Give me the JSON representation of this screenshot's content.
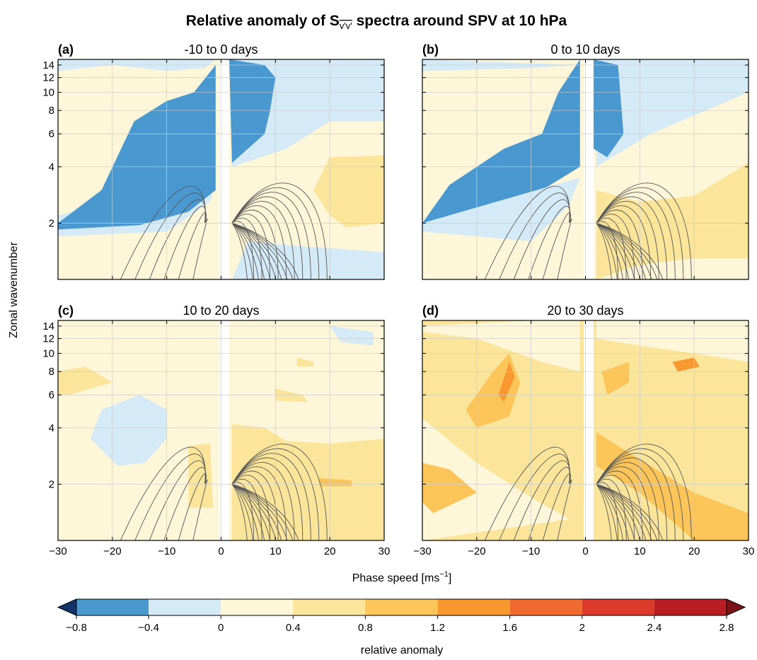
{
  "figure": {
    "title_prefix": "Relative anomaly of S",
    "title_overline": "v'v'",
    "title_suffix": " spectra around SPV at 10 hPa",
    "xlabel": "Phase speed [ms",
    "xlabel_sup": "−1",
    "xlabel_end": "]",
    "ylabel": "Zonal wavenumber",
    "colorbar_label": "relative anomaly"
  },
  "colors": {
    "levels": [
      -0.8,
      -0.4,
      0,
      0.4,
      0.8,
      1.2,
      1.6,
      2,
      2.4,
      2.8
    ],
    "fills": [
      "#4a98d0",
      "#d4eaf6",
      "#fdf6d8",
      "#fbe59a",
      "#fbc559",
      "#f9982e",
      "#f0692f",
      "#de3a2c",
      "#b91d24"
    ],
    "under": "#15336b",
    "over": "#7a1317"
  },
  "chart_data": {
    "type": "contourf",
    "x_ticks": [
      "−30",
      "−20",
      "−10",
      "0",
      "10",
      "20",
      "30"
    ],
    "x_values": [
      -30,
      -20,
      -10,
      0,
      10,
      20,
      30
    ],
    "y_ticks": [
      "2",
      "4",
      "6",
      "8",
      "10",
      "12",
      "14"
    ],
    "y_values": [
      2,
      4,
      6,
      8,
      10,
      12,
      14
    ],
    "xlim": [
      -30,
      30
    ],
    "ylim": [
      1,
      15
    ],
    "y_scale": "log",
    "grid": true,
    "colorbar_ticks": [
      "−0.8",
      "−0.4",
      "0",
      "0.4",
      "0.8",
      "1.2",
      "1.6",
      "2",
      "2.4",
      "2.8"
    ],
    "panels": [
      {
        "letter": "(a)",
        "title": "-10 to 0 days"
      },
      {
        "letter": "(b)",
        "title": "0 to 10 days"
      },
      {
        "letter": "(c)",
        "title": "10 to 20 days"
      },
      {
        "letter": "(d)",
        "title": "20 to 30 days"
      }
    ]
  }
}
